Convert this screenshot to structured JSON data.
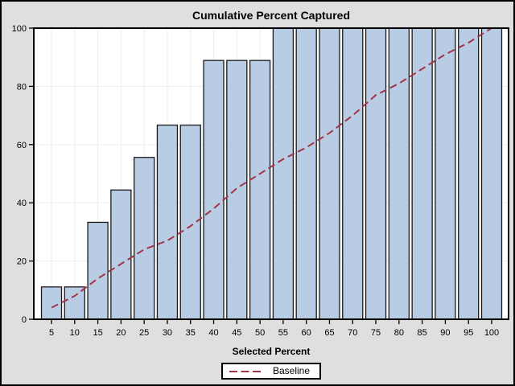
{
  "window": {
    "background": "#DFDFDF"
  },
  "chart_data": {
    "type": "bar",
    "title": "Cumulative Percent Captured",
    "xlabel": "Selected Percent",
    "ylabel": "",
    "categories": [
      5,
      10,
      15,
      20,
      25,
      30,
      35,
      40,
      45,
      50,
      55,
      60,
      65,
      70,
      75,
      80,
      85,
      90,
      95,
      100
    ],
    "values": [
      11.1,
      11.1,
      33.3,
      44.4,
      55.6,
      66.7,
      66.7,
      88.9,
      88.9,
      88.9,
      100,
      100,
      100,
      100,
      100,
      100,
      100,
      100,
      100,
      100
    ],
    "series": [
      {
        "name": "Baseline",
        "type": "dashed-line",
        "values": [
          4,
          8,
          14,
          19,
          24,
          27,
          32,
          38,
          45,
          50,
          55,
          59,
          64,
          70,
          77,
          81,
          86,
          91,
          95,
          100
        ]
      }
    ],
    "x_ticks": [
      5,
      10,
      15,
      20,
      25,
      30,
      35,
      40,
      45,
      50,
      55,
      60,
      65,
      70,
      75,
      80,
      85,
      90,
      95,
      100
    ],
    "y_ticks": [
      0,
      20,
      40,
      60,
      80,
      100
    ],
    "ylim": [
      0,
      100
    ],
    "grid": true,
    "legend": {
      "position": "bottom-center",
      "entries": [
        "Baseline"
      ]
    },
    "colors": {
      "bar_fill": "#B8CCE4",
      "bar_stroke": "#1A1A1A",
      "baseline_line": "#A3344A",
      "background": "#DFDFDF",
      "plot_background": "#FFFFFF",
      "grid": "#EDEDED",
      "frame": "#000000",
      "text": "#000000"
    }
  }
}
